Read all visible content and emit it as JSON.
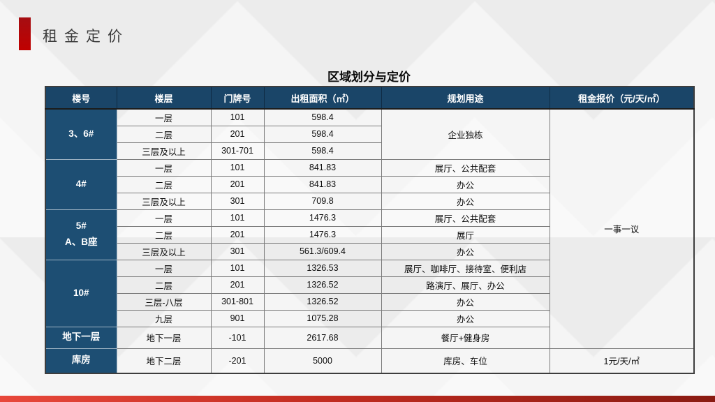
{
  "slide": {
    "page_title": "租金定价",
    "table_title": "区域划分与定价"
  },
  "colors": {
    "accent_red": "#c00000",
    "header_blue": "#1a4568",
    "building_blue": "#1d4e73",
    "footer_gradient_left": "#e8483b",
    "footer_gradient_right": "#8a1b12"
  },
  "table": {
    "columns": [
      "楼号",
      "楼层",
      "门牌号",
      "出租面积（㎡）",
      "规划用途",
      "租金报价（元/天/㎡）"
    ],
    "rows": [
      [
        {
          "kind": "building",
          "text": "3、6#",
          "rowspan": 3
        },
        {
          "text": "一层"
        },
        {
          "text": "101"
        },
        {
          "text": "598.4"
        },
        {
          "kind": "usage",
          "text": "企业独栋",
          "rowspan": 3
        },
        {
          "kind": "rent",
          "text": "一事一议",
          "rowspan": 14
        }
      ],
      [
        {
          "text": "二层"
        },
        {
          "text": "201"
        },
        {
          "text": "598.4"
        }
      ],
      [
        {
          "text": "三层及以上"
        },
        {
          "text": "301-701"
        },
        {
          "text": "598.4"
        }
      ],
      [
        {
          "kind": "building",
          "text": "4#",
          "rowspan": 3
        },
        {
          "text": "一层"
        },
        {
          "text": "101"
        },
        {
          "text": "841.83"
        },
        {
          "kind": "usage",
          "text": "展厅、公共配套"
        }
      ],
      [
        {
          "text": "二层"
        },
        {
          "text": "201"
        },
        {
          "text": "841.83"
        },
        {
          "kind": "usage",
          "text": "办公"
        }
      ],
      [
        {
          "text": "三层及以上"
        },
        {
          "text": "301"
        },
        {
          "text": "709.8"
        },
        {
          "kind": "usage",
          "text": "办公"
        }
      ],
      [
        {
          "kind": "building",
          "text": "5#\nA、B座",
          "rowspan": 3
        },
        {
          "text": "一层"
        },
        {
          "text": "101"
        },
        {
          "text": "1476.3"
        },
        {
          "kind": "usage",
          "text": "展厅、公共配套"
        }
      ],
      [
        {
          "text": "二层"
        },
        {
          "text": "201"
        },
        {
          "text": "1476.3"
        },
        {
          "kind": "usage",
          "text": "展厅"
        }
      ],
      [
        {
          "text": "三层及以上"
        },
        {
          "text": "301"
        },
        {
          "text": "561.3/609.4"
        },
        {
          "kind": "usage",
          "text": "办公"
        }
      ],
      [
        {
          "kind": "building",
          "text": "10#",
          "rowspan": 4
        },
        {
          "text": "一层"
        },
        {
          "text": "101"
        },
        {
          "text": "1326.53"
        },
        {
          "kind": "usage",
          "text": "展厅、咖啡厅、接待室、便利店"
        }
      ],
      [
        {
          "text": "二层"
        },
        {
          "text": "201"
        },
        {
          "text": "1326.52"
        },
        {
          "kind": "usage",
          "text": "路演厅、展厅、办公"
        }
      ],
      [
        {
          "text": "三层-八层"
        },
        {
          "text": "301-801"
        },
        {
          "text": "1326.52"
        },
        {
          "kind": "usage",
          "text": "办公"
        }
      ],
      [
        {
          "text": "九层"
        },
        {
          "text": "901"
        },
        {
          "text": "1075.28"
        },
        {
          "kind": "usage",
          "text": "办公"
        }
      ],
      [
        {
          "kind": "building",
          "text": "地下一层"
        },
        {
          "text": "地下一层"
        },
        {
          "text": "-101"
        },
        {
          "text": "2617.68"
        },
        {
          "kind": "usage",
          "text": "餐厅+健身房"
        }
      ],
      [
        {
          "kind": "building",
          "text": "库房"
        },
        {
          "text": "地下二层"
        },
        {
          "text": "-201"
        },
        {
          "text": "5000"
        },
        {
          "kind": "usage",
          "text": "库房、车位"
        },
        {
          "kind": "rent",
          "text": "1元/天/㎡"
        }
      ]
    ]
  }
}
